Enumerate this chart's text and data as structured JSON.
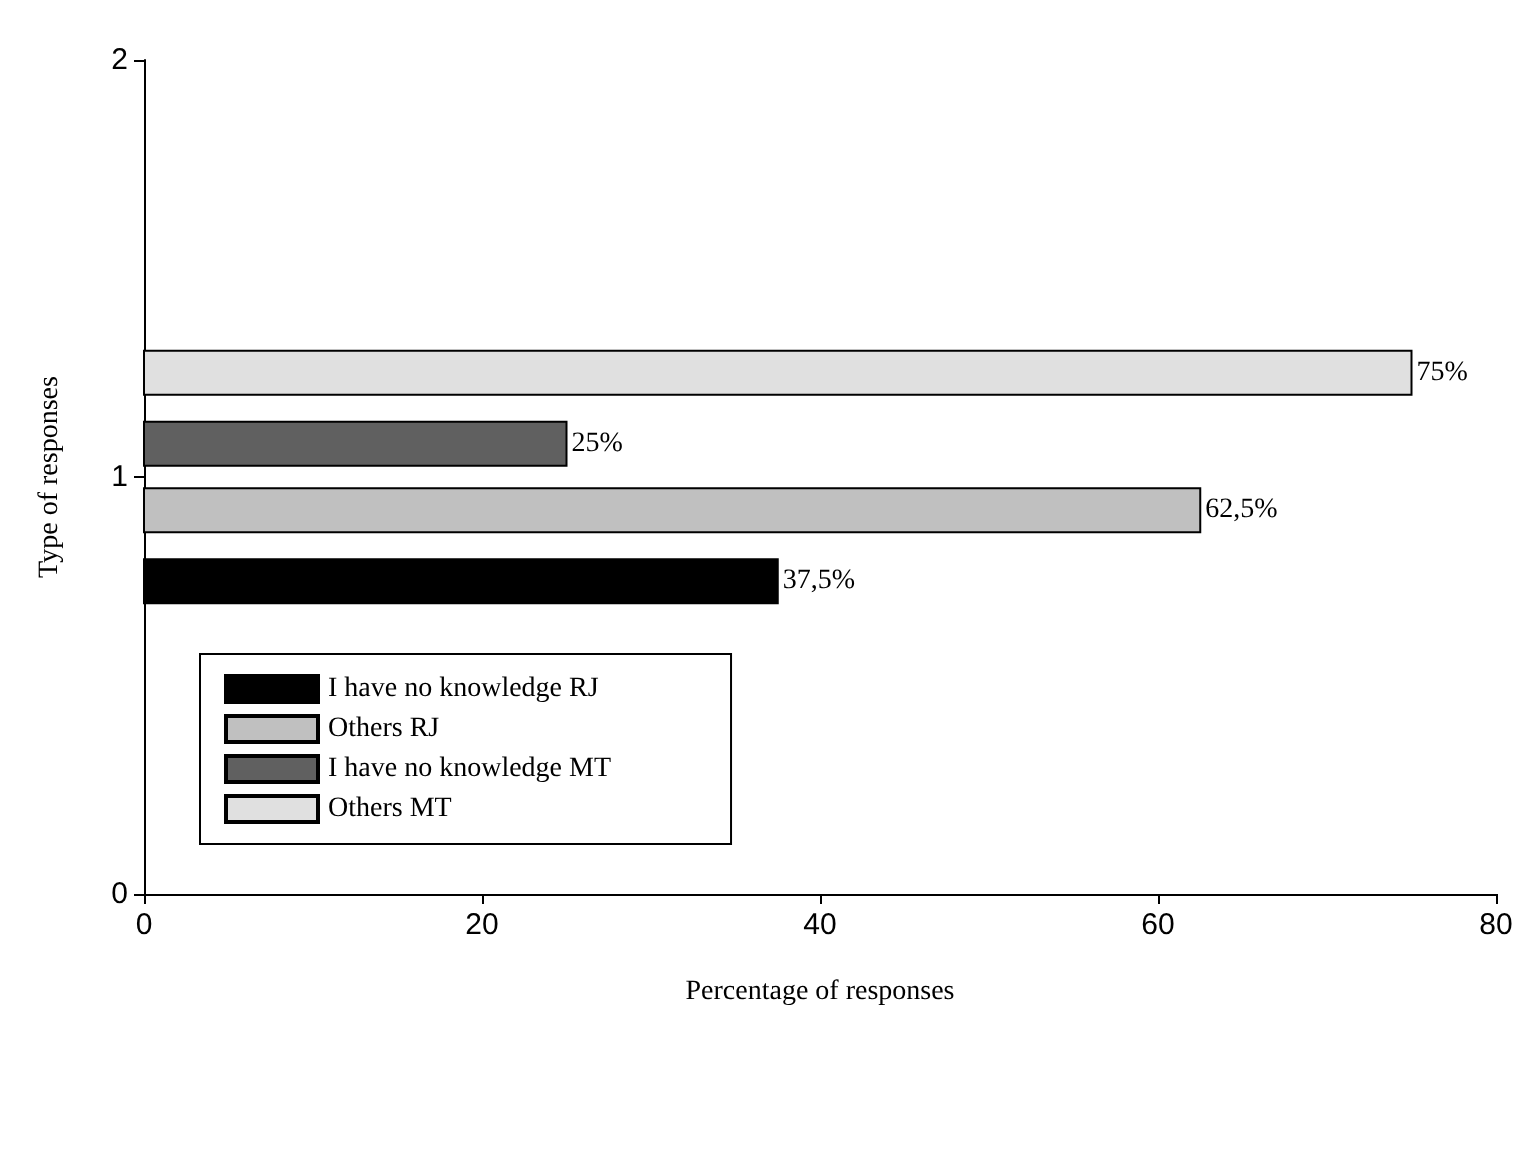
{
  "chart_data": {
    "type": "bar",
    "orientation": "horizontal",
    "xlabel": "Percentage of responses",
    "ylabel": "Type of responses",
    "ylim": [
      0,
      2
    ],
    "yticks": [
      0,
      1,
      2
    ],
    "xlim": [
      0,
      80
    ],
    "xticks": [
      0,
      20,
      40,
      60,
      80
    ],
    "grid": false,
    "legend": "bottom left",
    "series": [
      {
        "name": "I have no knowledge RJ",
        "color": "#000000",
        "x": [
          0.75
        ],
        "values": [
          37.5
        ],
        "value_labels": [
          "37,5%"
        ]
      },
      {
        "name": "Others RJ",
        "color": "#c0c0c0",
        "x": [
          0.92
        ],
        "values": [
          62.5
        ],
        "value_labels": [
          "62,5%"
        ]
      },
      {
        "name": "I have no knowledge MT",
        "color": "#606060",
        "x": [
          1.08
        ],
        "values": [
          25
        ],
        "value_labels": [
          "25%"
        ]
      },
      {
        "name": "Others MT",
        "color": "#e0e0e0",
        "x": [
          1.25
        ],
        "values": [
          75
        ],
        "value_labels": [
          "75%"
        ]
      }
    ]
  }
}
